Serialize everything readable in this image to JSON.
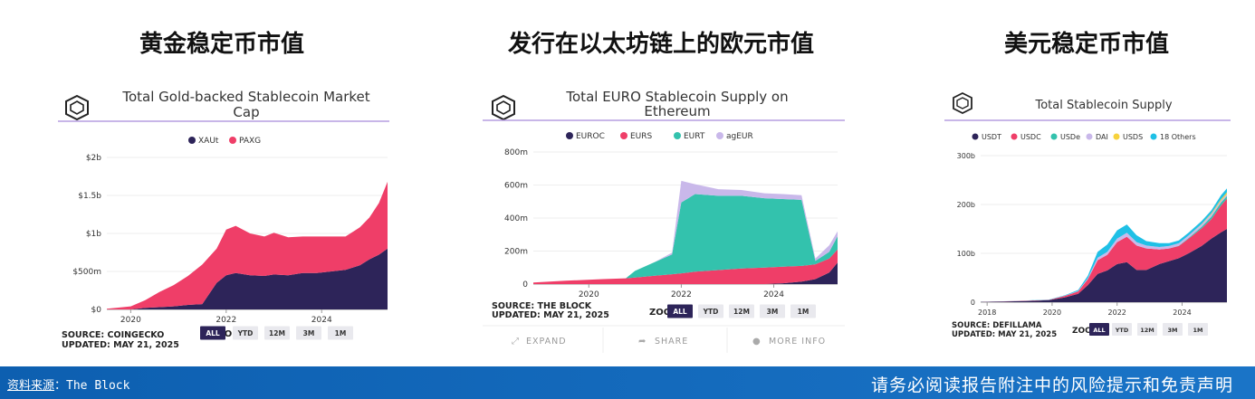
{
  "headings": [
    "黄金稳定币市值",
    "发行在以太坊链上的欧元市值",
    "美元稳定币市值"
  ],
  "footer": {
    "source_prefix": "资料来源",
    "source_name": "：The Block",
    "disclaimer": "请务必阅读报告附注中的风险提示和免责声明"
  },
  "zoom": {
    "label": "ZOOM",
    "options": [
      "ALL",
      "YTD",
      "12M",
      "3M",
      "1M"
    ],
    "selected": "ALL"
  },
  "actions": {
    "expand": "EXPAND",
    "share": "SHARE",
    "more_info": "MORE INFO"
  },
  "colors": {
    "xaut": "#2d2459",
    "paxg": "#ef3e68",
    "euroc": "#2d2459",
    "eurs": "#ef3e68",
    "eurt": "#33c2ad",
    "ageur": "#c9b8ea",
    "usdt": "#2d2459",
    "usdc": "#ef3e68",
    "usde": "#33c2ad",
    "dai": "#c9b8ea",
    "usds": "#f7d23c",
    "others": "#1fc0e6",
    "footer": "#0d5fb0"
  },
  "chart_data": [
    {
      "type": "area",
      "title": "Total Gold-backed Stablecoin Market Cap",
      "stacked": true,
      "x": [
        2019.5,
        2020.0,
        2020.3,
        2020.6,
        2020.9,
        2021.2,
        2021.5,
        2021.8,
        2022.0,
        2022.2,
        2022.5,
        2022.8,
        2023.0,
        2023.3,
        2023.6,
        2023.9,
        2024.2,
        2024.5,
        2024.8,
        2025.0,
        2025.2,
        2025.38
      ],
      "x_ticks": [
        "2020",
        "2022",
        "2024"
      ],
      "series": [
        {
          "name": "XAUt",
          "values": [
            0,
            0,
            0.02,
            0.03,
            0.04,
            0.06,
            0.07,
            0.35,
            0.45,
            0.48,
            0.45,
            0.44,
            0.46,
            0.45,
            0.48,
            0.48,
            0.5,
            0.52,
            0.58,
            0.66,
            0.72,
            0.8
          ]
        },
        {
          "name": "PAXG",
          "values": [
            0.01,
            0.04,
            0.1,
            0.2,
            0.28,
            0.38,
            0.52,
            0.45,
            0.6,
            0.62,
            0.55,
            0.52,
            0.55,
            0.5,
            0.48,
            0.48,
            0.46,
            0.44,
            0.5,
            0.55,
            0.68,
            0.88
          ]
        }
      ],
      "y_ticks": [
        "$0",
        "$500m",
        "$1b",
        "$1.5b",
        "$2b"
      ],
      "ylim": [
        0,
        2
      ],
      "source": "SOURCE: COINGECKO",
      "updated": "UPDATED: MAY 21, 2025"
    },
    {
      "type": "area",
      "title": "Total EURO Stablecoin Supply on Ethereum",
      "stacked": true,
      "x": [
        2018.8,
        2019.5,
        2020.3,
        2020.8,
        2021.0,
        2021.4,
        2021.8,
        2022.0,
        2022.3,
        2022.8,
        2023.3,
        2023.8,
        2024.2,
        2024.6,
        2024.9,
        2025.2,
        2025.38
      ],
      "x_ticks": [
        "2020",
        "2022",
        "2024"
      ],
      "series": [
        {
          "name": "EUROC",
          "values": [
            0,
            0,
            0,
            0,
            0,
            0,
            0,
            0,
            0,
            0,
            0,
            0,
            5,
            15,
            30,
            70,
            130
          ]
        },
        {
          "name": "EURS",
          "values": [
            10,
            20,
            30,
            35,
            40,
            50,
            60,
            65,
            75,
            85,
            95,
            100,
            100,
            95,
            90,
            85,
            80
          ]
        },
        {
          "name": "EURT",
          "values": [
            0,
            0,
            0,
            0,
            40,
            80,
            120,
            430,
            470,
            450,
            440,
            420,
            410,
            400,
            20,
            40,
            80
          ]
        },
        {
          "name": "agEUR",
          "values": [
            0,
            0,
            0,
            0,
            0,
            0,
            10,
            130,
            60,
            40,
            35,
            30,
            30,
            28,
            15,
            40,
            30
          ]
        }
      ],
      "y_ticks": [
        "0",
        "200m",
        "400m",
        "600m",
        "800m"
      ],
      "ylim": [
        0,
        800
      ],
      "source": "SOURCE: THE BLOCK",
      "updated": "UPDATED: MAY 21, 2025"
    },
    {
      "type": "area",
      "title": "Total Stablecoin Supply",
      "stacked": true,
      "x": [
        2017.8,
        2018.5,
        2019.2,
        2019.9,
        2020.4,
        2020.8,
        2021.1,
        2021.4,
        2021.7,
        2022.0,
        2022.3,
        2022.6,
        2022.9,
        2023.3,
        2023.6,
        2023.9,
        2024.2,
        2024.6,
        2024.9,
        2025.2,
        2025.38
      ],
      "x_ticks": [
        "2018",
        "2020",
        "2022",
        "2024"
      ],
      "series": [
        {
          "name": "USDT",
          "values": [
            0.5,
            1.5,
            2.5,
            4,
            10,
            17,
            35,
            58,
            65,
            78,
            82,
            66,
            66,
            78,
            84,
            90,
            100,
            115,
            130,
            143,
            150
          ]
        },
        {
          "name": "USDC",
          "values": [
            0,
            0.2,
            0.5,
            0.6,
            3,
            5,
            12,
            28,
            32,
            45,
            52,
            50,
            44,
            30,
            26,
            25,
            30,
            36,
            40,
            55,
            62
          ]
        },
        {
          "name": "USDe",
          "values": [
            0,
            0,
            0,
            0,
            0,
            0,
            0,
            0,
            0,
            0,
            0,
            0,
            0,
            0,
            0,
            0.5,
            1.5,
            3,
            5,
            6,
            5
          ]
        },
        {
          "name": "DAI",
          "values": [
            0,
            0.1,
            0.2,
            0.3,
            0.5,
            1,
            2,
            5,
            6,
            7,
            8,
            7,
            6,
            5,
            5,
            5,
            5,
            5,
            5,
            4,
            4
          ]
        },
        {
          "name": "USDS",
          "values": [
            0,
            0,
            0,
            0,
            0,
            0,
            0,
            0,
            0,
            0,
            0,
            0,
            0,
            0,
            0,
            0,
            0,
            1,
            2,
            3,
            4
          ]
        },
        {
          "name": "18 Others",
          "values": [
            0,
            0.1,
            0.3,
            0.5,
            1,
            2,
            5,
            12,
            15,
            17,
            17,
            14,
            9,
            8,
            6,
            6,
            6,
            6,
            6,
            8,
            8
          ]
        }
      ],
      "y_ticks": [
        "0",
        "100b",
        "200b",
        "300b"
      ],
      "ylim": [
        0,
        300
      ],
      "source": "SOURCE: DEFILLAMA",
      "updated": "UPDATED: MAY 21, 2025"
    }
  ]
}
